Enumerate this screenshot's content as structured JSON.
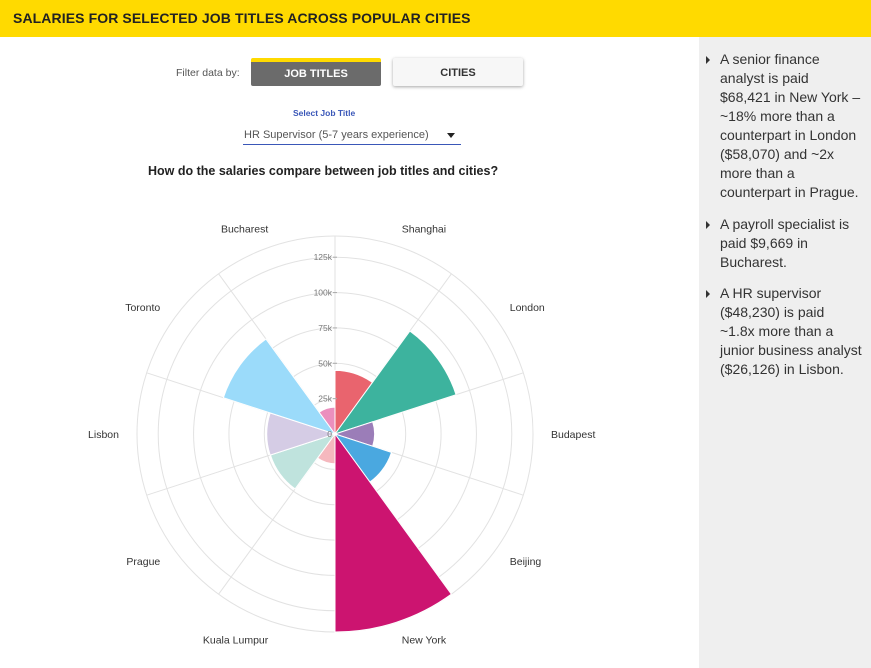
{
  "header": {
    "title": "SALARIES FOR SELECTED JOB TITLES ACROSS POPULAR CITIES"
  },
  "filter": {
    "label": "Filter data by:",
    "tabs": [
      {
        "label": "JOB TITLES",
        "active": true
      },
      {
        "label": "CITIES",
        "active": false
      }
    ]
  },
  "select": {
    "title": "Select Job Title",
    "value": "HR Supervisor (5-7 years experience)"
  },
  "chart_question": "How do the salaries compare between job titles and cities?",
  "colors": {
    "accent": "#FFDA00",
    "select_blue": "#3a57b8",
    "sidebar_bg": "#efefef"
  },
  "chart_data": {
    "type": "polar-area",
    "rmax": 140000,
    "ticks": [
      {
        "value": 0,
        "label": "0"
      },
      {
        "value": 25000,
        "label": "25k"
      },
      {
        "value": 50000,
        "label": "50k"
      },
      {
        "value": 75000,
        "label": "75k"
      },
      {
        "value": 100000,
        "label": "100k"
      },
      {
        "value": 125000,
        "label": "125k"
      }
    ],
    "categories": [
      "Shanghai",
      "London",
      "Budapest",
      "Beijing",
      "New York",
      "Kuala Lumpur",
      "Prague",
      "Lisbon",
      "Toronto",
      "Bucharest"
    ],
    "values": [
      45000,
      90000,
      28000,
      42000,
      140000,
      21000,
      48000,
      48230,
      83000,
      19000
    ],
    "colors": [
      "#E9646E",
      "#3DB39E",
      "#9B7DB8",
      "#4AA8E0",
      "#CC1470",
      "#F5B8BE",
      "#BFE3DD",
      "#D5CCE5",
      "#9BDBFA",
      "#EB8FBE"
    ]
  },
  "insights": [
    "A senior finance analyst is paid $68,421 in New York – ~18% more than a counterpart in London ($58,070) and ~2x more than a counterpart in Prague.",
    "A payroll specialist is paid $9,669 in Bucharest.",
    "A HR supervisor ($48,230) is paid ~1.8x more than a junior business analyst ($26,126) in Lisbon."
  ]
}
